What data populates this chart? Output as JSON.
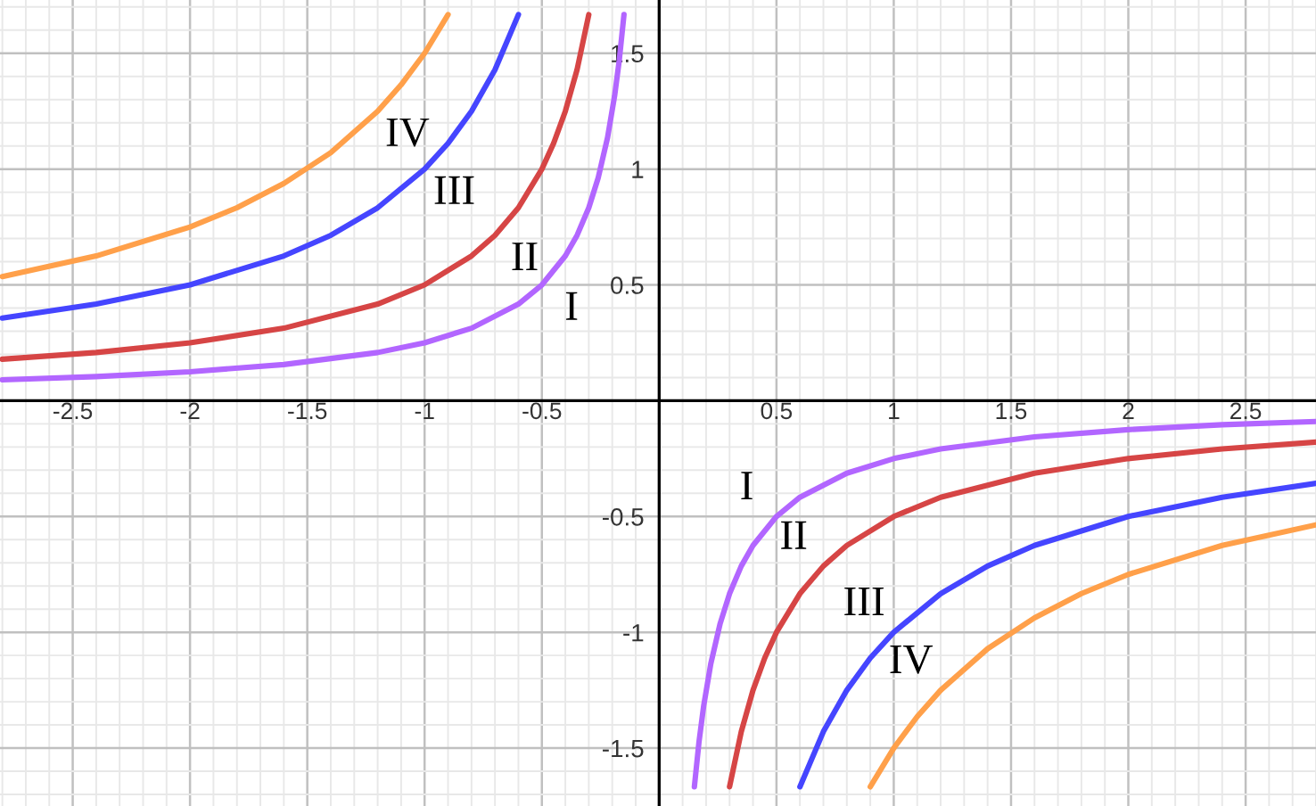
{
  "chart_data": {
    "type": "line",
    "xlim": [
      -2.81,
      2.8
    ],
    "ylim": [
      -1.75,
      1.73
    ],
    "xticks": [
      -2.5,
      -2,
      -1.5,
      -1,
      -0.5,
      0.5,
      1,
      1.5,
      2,
      2.5
    ],
    "yticks": [
      -1.5,
      -1,
      -0.5,
      0.5,
      1,
      1.5
    ],
    "grid": true,
    "series": [
      {
        "color": "#b266ff",
        "x": [
          -2.8,
          -2.4,
          -2,
          -1.6,
          -1.2,
          -1,
          -0.8,
          -0.6,
          -0.5,
          -0.4,
          -0.35,
          -0.3,
          -0.26,
          -0.22,
          -0.19,
          -0.17,
          -0.15,
          0,
          0.15,
          0.17,
          0.19,
          0.22,
          0.26,
          0.3,
          0.35,
          0.4,
          0.5,
          0.6,
          0.8,
          1,
          1.2,
          1.6,
          2,
          2.4,
          2.8
        ],
        "values": [
          0.09,
          0.104,
          0.125,
          0.156,
          0.208,
          0.25,
          0.313,
          0.417,
          0.5,
          0.625,
          0.714,
          0.833,
          0.962,
          1.136,
          1.316,
          1.471,
          1.667,
          null,
          -1.667,
          -1.471,
          -1.316,
          -1.136,
          -0.962,
          -0.833,
          -0.714,
          -0.625,
          -0.5,
          -0.417,
          -0.313,
          -0.25,
          -0.208,
          -0.156,
          -0.125,
          -0.104,
          -0.09
        ]
      },
      {
        "color": "#d64545",
        "x": [
          -2.8,
          -2.4,
          -2,
          -1.6,
          -1.2,
          -1,
          -0.8,
          -0.7,
          -0.6,
          -0.5,
          -0.45,
          -0.4,
          -0.35,
          -0.3,
          0,
          0.3,
          0.35,
          0.4,
          0.45,
          0.5,
          0.6,
          0.7,
          0.8,
          1,
          1.2,
          1.6,
          2,
          2.4,
          2.8
        ],
        "values": [
          0.179,
          0.208,
          0.25,
          0.313,
          0.417,
          0.5,
          0.625,
          0.714,
          0.833,
          1,
          1.111,
          1.25,
          1.429,
          1.667,
          null,
          -1.667,
          -1.429,
          -1.25,
          -1.111,
          -1,
          -0.833,
          -0.714,
          -0.625,
          -0.5,
          -0.417,
          -0.313,
          -0.25,
          -0.208,
          -0.179
        ]
      },
      {
        "color": "#4545ff",
        "x": [
          -2.8,
          -2.4,
          -2,
          -1.6,
          -1.4,
          -1.2,
          -1,
          -0.9,
          -0.8,
          -0.7,
          -0.6,
          0,
          0.6,
          0.7,
          0.8,
          0.9,
          1,
          1.2,
          1.4,
          1.6,
          2,
          2.4,
          2.8
        ],
        "values": [
          0.357,
          0.417,
          0.5,
          0.625,
          0.714,
          0.833,
          1,
          1.111,
          1.25,
          1.429,
          1.667,
          null,
          -1.667,
          -1.429,
          -1.25,
          -1.111,
          -1,
          -0.833,
          -0.714,
          -0.625,
          -0.5,
          -0.417,
          -0.357
        ]
      },
      {
        "color": "#ffa04a",
        "x": [
          -2.8,
          -2.4,
          -2,
          -1.8,
          -1.6,
          -1.4,
          -1.2,
          -1.1,
          -1,
          -0.9,
          0,
          0.9,
          1,
          1.1,
          1.2,
          1.4,
          1.6,
          1.8,
          2,
          2.4,
          2.8
        ],
        "values": [
          0.536,
          0.625,
          0.75,
          0.833,
          0.938,
          1.071,
          1.25,
          1.364,
          1.5,
          1.667,
          null,
          -1.667,
          -1.5,
          -1.364,
          -1.25,
          -1.071,
          -0.938,
          -0.833,
          -0.75,
          -0.625,
          -0.536
        ]
      }
    ],
    "annotations": [
      {
        "text": "IV",
        "x": -1.2,
        "y": 1.25
      },
      {
        "text": "III",
        "x": -1,
        "y": 1
      },
      {
        "text": "II",
        "x": -0.7,
        "y": 0.714
      },
      {
        "text": "I",
        "x": -0.5,
        "y": 0.5
      },
      {
        "text": "I",
        "x": 0.5,
        "y": -0.5
      },
      {
        "text": "II",
        "x": 0.7,
        "y": -0.714
      },
      {
        "text": "III",
        "x": 1,
        "y": -1
      },
      {
        "text": "IV",
        "x": 1.2,
        "y": -1.25
      }
    ]
  }
}
